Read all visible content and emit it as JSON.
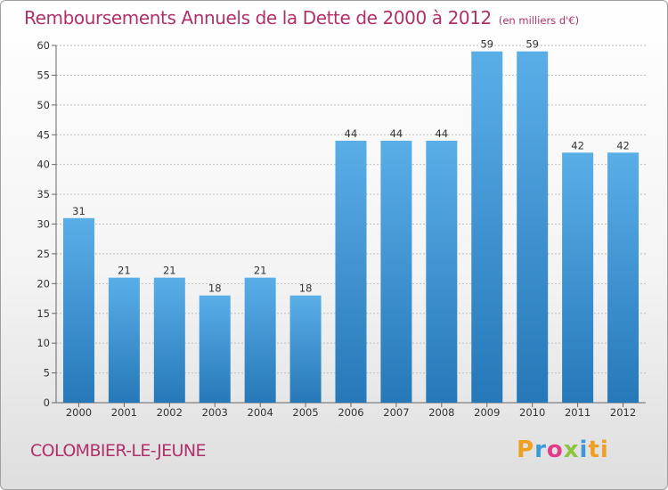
{
  "header": {
    "title": "Remboursements Annuels de la Dette de 2000 à 2012",
    "subtitle": "(en milliers d'€)"
  },
  "footer": {
    "commune": "COLOMBIER-LE-JEUNE",
    "logo": "Proxiti",
    "logo_colors": [
      "#f0a020",
      "#3a9ad9",
      "#e03c8a",
      "#8cc63e",
      "#3a9ad9",
      "#f0a020"
    ]
  },
  "colors": {
    "accent": "#b0306a",
    "bar_top": "#5aaee8",
    "bar_bottom": "#2678b8",
    "grid": "#c0c0c0"
  },
  "chart_data": {
    "type": "bar",
    "title": "Remboursements Annuels de la Dette de 2000 à 2012",
    "subtitle": "(en milliers d'€)",
    "categories": [
      "2000",
      "2001",
      "2002",
      "2003",
      "2004",
      "2005",
      "2006",
      "2007",
      "2008",
      "2009",
      "2010",
      "2011",
      "2012"
    ],
    "values": [
      31,
      21,
      21,
      18,
      21,
      18,
      44,
      44,
      44,
      59,
      59,
      42,
      42
    ],
    "ylim": [
      0,
      60
    ],
    "yticks": [
      0,
      5,
      10,
      15,
      20,
      25,
      30,
      35,
      40,
      45,
      50,
      55,
      60
    ],
    "grid": true,
    "data_labels": true
  }
}
